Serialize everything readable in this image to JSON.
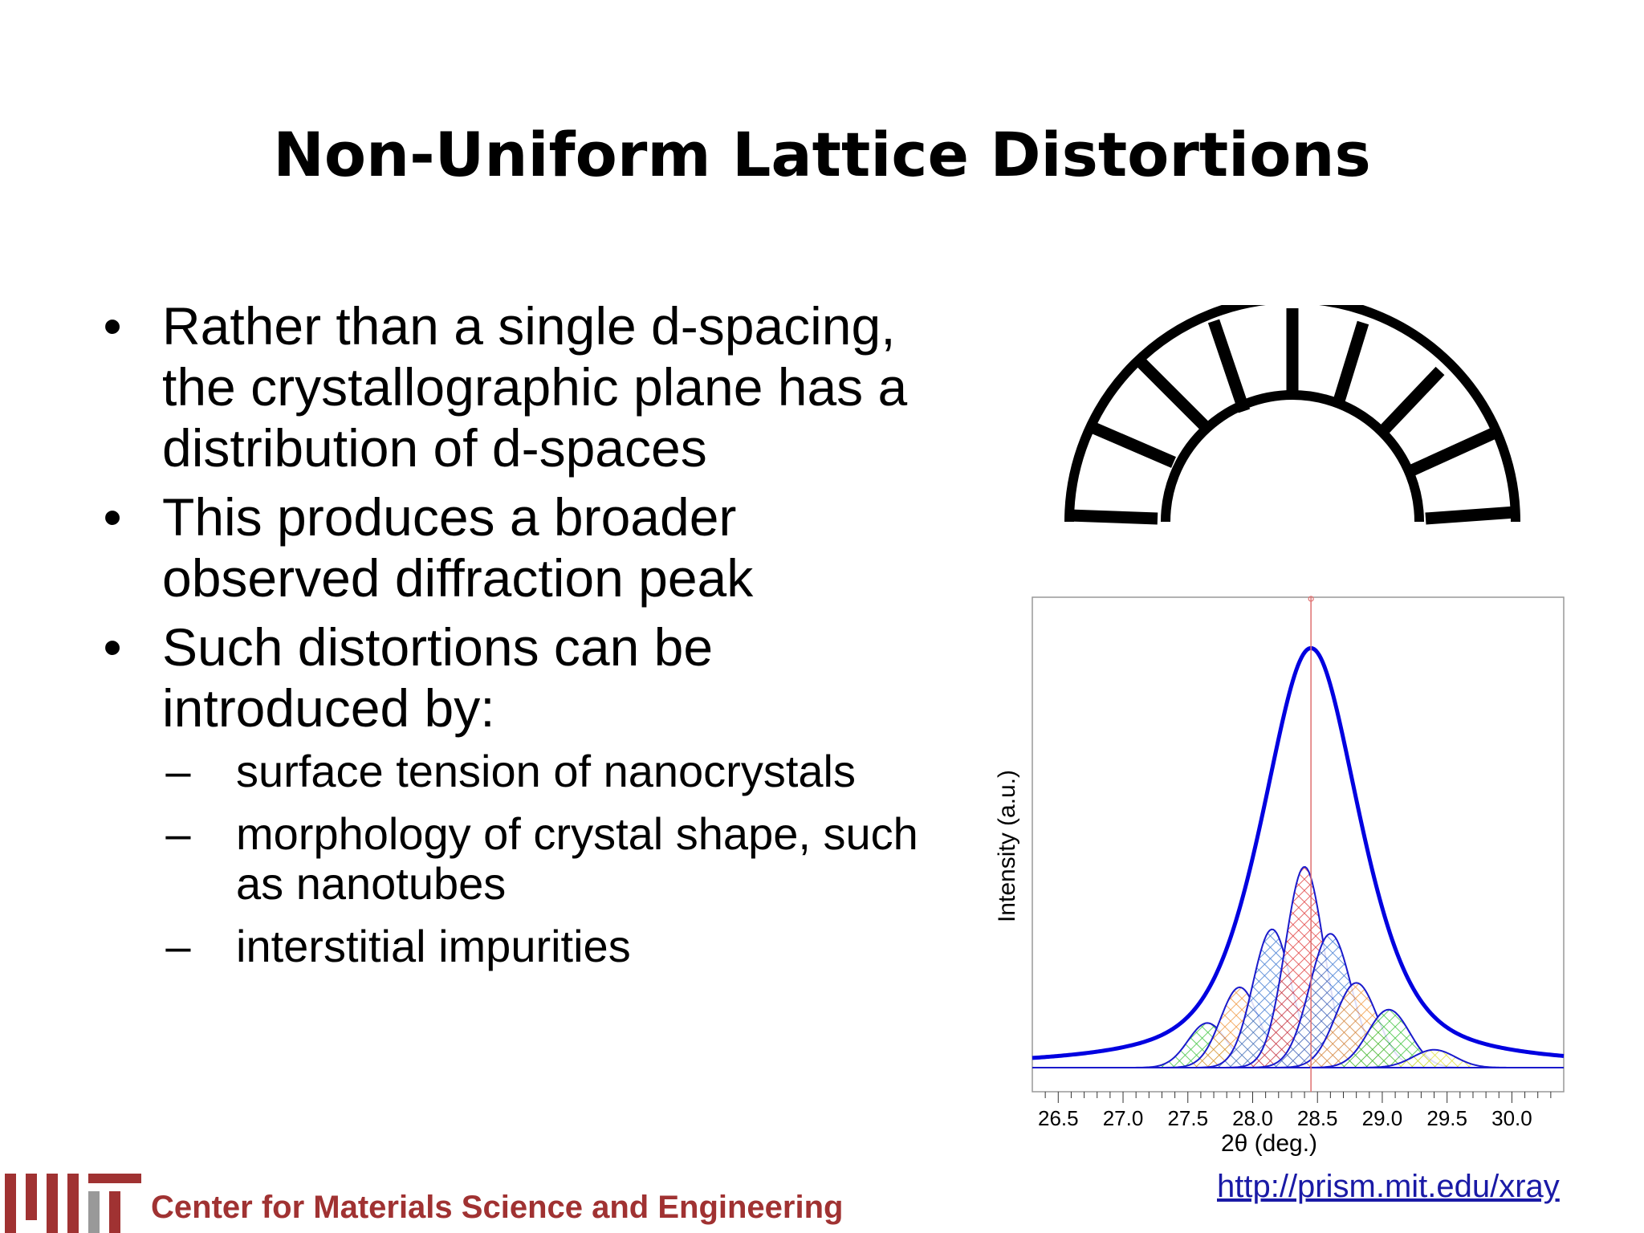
{
  "slide": {
    "title": "Non-Uniform Lattice Distortions",
    "bullets": [
      {
        "symbol": "•",
        "text_lines": [
          "Rather than a single d-spacing,",
          "the crystallographic plane has a",
          "distribution of d-spaces"
        ]
      },
      {
        "symbol": "•",
        "text_lines": [
          "This produces a broader",
          "observed diffraction peak"
        ]
      },
      {
        "symbol": "•",
        "text_lines": [
          "Such distortions can be",
          "introduced by:"
        ]
      }
    ],
    "subbullets": [
      {
        "symbol": "–",
        "text_lines": [
          "surface tension of nanocrystals"
        ]
      },
      {
        "symbol": "–",
        "text_lines": [
          "morphology of crystal shape, such",
          "as nanotubes"
        ]
      },
      {
        "symbol": "–",
        "text_lines": [
          "interstitial impurities"
        ]
      }
    ],
    "url": "http://prism.mit.edu/xray",
    "footer": "Center for Materials Science and Engineering",
    "colors": {
      "footer": "#a03232",
      "url": "#1a1aa6",
      "envelope": "#0000e0",
      "reference_line": "#e07070"
    }
  },
  "chart_data": {
    "type": "line",
    "xlabel": "2θ (deg.)",
    "ylabel": "Intensity (a.u.)",
    "xlim": [
      26.3,
      30.4
    ],
    "ylim": [
      0,
      100
    ],
    "xticks": [
      "26.5",
      "27.0",
      "27.5",
      "28.0",
      "28.5",
      "29.0",
      "29.5",
      "30.0"
    ],
    "reference_line_x": 28.45,
    "series": [
      {
        "center": 28.45,
        "fwhm": 0.9,
        "height": 94,
        "color": "#0000e0",
        "fill": "none"
      },
      {
        "center": 27.65,
        "fwhm": 0.35,
        "height": 10,
        "color": "#22bb22",
        "fill": "crosshatch"
      },
      {
        "center": 27.9,
        "fwhm": 0.35,
        "height": 18,
        "color": "#ee8822",
        "fill": "crosshatch"
      },
      {
        "center": 28.15,
        "fwhm": 0.35,
        "height": 31,
        "color": "#2266cc",
        "fill": "crosshatch"
      },
      {
        "center": 28.4,
        "fwhm": 0.35,
        "height": 45,
        "color": "#dd2222",
        "fill": "crosshatch"
      },
      {
        "center": 28.6,
        "fwhm": 0.38,
        "height": 30,
        "color": "#2266cc",
        "fill": "crosshatch"
      },
      {
        "center": 28.8,
        "fwhm": 0.38,
        "height": 19,
        "color": "#ee8822",
        "fill": "crosshatch"
      },
      {
        "center": 29.05,
        "fwhm": 0.38,
        "height": 13,
        "color": "#22bb22",
        "fill": "crosshatch"
      },
      {
        "center": 29.4,
        "fwhm": 0.38,
        "height": 4,
        "color": "#dddd22",
        "fill": "crosshatch"
      }
    ]
  }
}
